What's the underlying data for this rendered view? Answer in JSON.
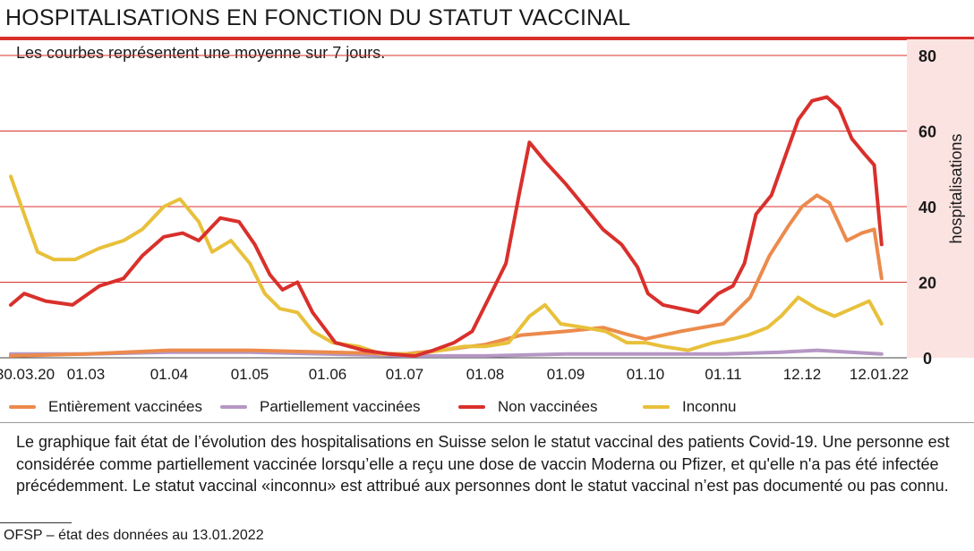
{
  "header": {
    "title": "HOSPITALISATIONS EN FONCTION DU STATUT VACCINAL",
    "subtitle": "Les courbes représentent une moyenne sur 7 jours."
  },
  "legend": {
    "items": [
      {
        "label": "Entièrement vaccinées",
        "color": "#ec8a4c"
      },
      {
        "label": "Partiellement vaccinées",
        "color": "#b597c4"
      },
      {
        "label": "Non vaccinées",
        "color": "#d9302c"
      },
      {
        "label": "Inconnu",
        "color": "#e8c03b"
      }
    ]
  },
  "note": "Le graphique fait état de l’évolution des hospitalisations en Suisse selon le statut vaccinal des patients Covid-19. Une personne est considérée comme partiellement vaccinée lorsqu’elle a reçu une dose de vaccin Moderna ou Pfizer, et qu'elle n'a pas été infectée précédemment. Le statut vaccinal «inconnu» est attribué aux personnes dont le statut vaccinal n’est pas documenté ou pas connu.",
  "source": "OFSP – état des données au 13.01.2022",
  "colors": {
    "accent": "#d9302c",
    "right_band": "#fbe3e1",
    "grid": "#d9302c"
  },
  "chart_data": {
    "type": "line",
    "xlabel": "",
    "ylabel": "hospitalisations",
    "ylim": [
      0,
      80
    ],
    "y_ticks": [
      0,
      20,
      40,
      60,
      80
    ],
    "x_tick_labels": [
      {
        "date": "2020-03-30",
        "label": "30.03.20"
      },
      {
        "date": "2021-03-01",
        "label": "01.03"
      },
      {
        "date": "2021-04-01",
        "label": "01.04"
      },
      {
        "date": "2021-05-01",
        "label": "01.05"
      },
      {
        "date": "2021-06-01",
        "label": "01.06"
      },
      {
        "date": "2021-07-01",
        "label": "01.07"
      },
      {
        "date": "2021-08-01",
        "label": "01.08"
      },
      {
        "date": "2021-09-01",
        "label": "01.09"
      },
      {
        "date": "2021-10-01",
        "label": "01.10"
      },
      {
        "date": "2021-11-01",
        "label": "01.11"
      },
      {
        "date": "2021-12-12",
        "label": "12.12"
      },
      {
        "date": "2022-01-12",
        "label": "12.01.22"
      }
    ],
    "grid": true,
    "legend_position": "bottom",
    "series": [
      {
        "name": "Entièrement vaccinées",
        "color": "#ec8a4c",
        "points": [
          [
            "2021-02-01",
            0.5
          ],
          [
            "2021-03-01",
            1
          ],
          [
            "2021-04-01",
            2
          ],
          [
            "2021-05-01",
            2
          ],
          [
            "2021-06-01",
            1.5
          ],
          [
            "2021-07-01",
            1
          ],
          [
            "2021-07-15",
            2
          ],
          [
            "2021-08-01",
            3.5
          ],
          [
            "2021-08-15",
            6
          ],
          [
            "2021-09-01",
            7
          ],
          [
            "2021-09-15",
            8
          ],
          [
            "2021-09-25",
            6
          ],
          [
            "2021-10-01",
            5
          ],
          [
            "2021-10-15",
            7
          ],
          [
            "2021-11-01",
            9
          ],
          [
            "2021-11-15",
            16
          ],
          [
            "2021-11-25",
            27
          ],
          [
            "2021-12-05",
            35
          ],
          [
            "2021-12-12",
            40
          ],
          [
            "2021-12-18",
            43
          ],
          [
            "2021-12-23",
            41
          ],
          [
            "2021-12-30",
            31
          ],
          [
            "2022-01-05",
            33
          ],
          [
            "2022-01-10",
            34
          ],
          [
            "2022-01-13",
            21
          ]
        ]
      },
      {
        "name": "Partiellement vaccinées",
        "color": "#b597c4",
        "points": [
          [
            "2021-02-01",
            1
          ],
          [
            "2021-03-01",
            1
          ],
          [
            "2021-04-01",
            1.5
          ],
          [
            "2021-05-01",
            1.5
          ],
          [
            "2021-06-01",
            1
          ],
          [
            "2021-07-01",
            0.5
          ],
          [
            "2021-08-01",
            0.5
          ],
          [
            "2021-09-01",
            1
          ],
          [
            "2021-10-01",
            1
          ],
          [
            "2021-11-01",
            1
          ],
          [
            "2021-12-01",
            1.5
          ],
          [
            "2021-12-18",
            2
          ],
          [
            "2022-01-13",
            1
          ]
        ]
      },
      {
        "name": "Non vaccinées",
        "color": "#d9302c",
        "points": [
          [
            "2021-02-01",
            14
          ],
          [
            "2021-02-06",
            17
          ],
          [
            "2021-02-14",
            15
          ],
          [
            "2021-02-24",
            14
          ],
          [
            "2021-03-06",
            19
          ],
          [
            "2021-03-15",
            21
          ],
          [
            "2021-03-22",
            27
          ],
          [
            "2021-03-30",
            32
          ],
          [
            "2021-04-06",
            33
          ],
          [
            "2021-04-12",
            31
          ],
          [
            "2021-04-20",
            37
          ],
          [
            "2021-04-27",
            36
          ],
          [
            "2021-05-03",
            30
          ],
          [
            "2021-05-09",
            22
          ],
          [
            "2021-05-14",
            18
          ],
          [
            "2021-05-20",
            20
          ],
          [
            "2021-05-26",
            12
          ],
          [
            "2021-06-04",
            4
          ],
          [
            "2021-06-15",
            2
          ],
          [
            "2021-06-25",
            1
          ],
          [
            "2021-07-05",
            0.5
          ],
          [
            "2021-07-12",
            2
          ],
          [
            "2021-07-20",
            4
          ],
          [
            "2021-07-27",
            7
          ],
          [
            "2021-08-04",
            18
          ],
          [
            "2021-08-09",
            25
          ],
          [
            "2021-08-14",
            43
          ],
          [
            "2021-08-18",
            57
          ],
          [
            "2021-08-24",
            52
          ],
          [
            "2021-09-01",
            46
          ],
          [
            "2021-09-08",
            40
          ],
          [
            "2021-09-15",
            34
          ],
          [
            "2021-09-22",
            30
          ],
          [
            "2021-09-28",
            24
          ],
          [
            "2021-10-02",
            17
          ],
          [
            "2021-10-08",
            14
          ],
          [
            "2021-10-15",
            13
          ],
          [
            "2021-10-22",
            12
          ],
          [
            "2021-10-30",
            17
          ],
          [
            "2021-11-06",
            19
          ],
          [
            "2021-11-12",
            25
          ],
          [
            "2021-11-18",
            38
          ],
          [
            "2021-11-26",
            43
          ],
          [
            "2021-12-03",
            53
          ],
          [
            "2021-12-10",
            63
          ],
          [
            "2021-12-16",
            68
          ],
          [
            "2021-12-22",
            69
          ],
          [
            "2021-12-27",
            66
          ],
          [
            "2022-01-01",
            58
          ],
          [
            "2022-01-06",
            54
          ],
          [
            "2022-01-10",
            51
          ],
          [
            "2022-01-13",
            30
          ]
        ]
      },
      {
        "name": "Inconnu",
        "color": "#e8c03b",
        "points": [
          [
            "2021-02-01",
            48
          ],
          [
            "2021-02-06",
            38
          ],
          [
            "2021-02-11",
            28
          ],
          [
            "2021-02-17",
            26
          ],
          [
            "2021-02-25",
            26
          ],
          [
            "2021-03-06",
            29
          ],
          [
            "2021-03-15",
            31
          ],
          [
            "2021-03-22",
            34
          ],
          [
            "2021-03-30",
            40
          ],
          [
            "2021-04-05",
            42
          ],
          [
            "2021-04-12",
            36
          ],
          [
            "2021-04-17",
            28
          ],
          [
            "2021-04-24",
            31
          ],
          [
            "2021-05-01",
            25
          ],
          [
            "2021-05-07",
            17
          ],
          [
            "2021-05-13",
            13
          ],
          [
            "2021-05-20",
            12
          ],
          [
            "2021-05-26",
            7
          ],
          [
            "2021-06-03",
            4
          ],
          [
            "2021-06-13",
            3
          ],
          [
            "2021-06-22",
            1
          ],
          [
            "2021-07-05",
            1
          ],
          [
            "2021-07-15",
            2
          ],
          [
            "2021-07-24",
            3
          ],
          [
            "2021-08-01",
            3
          ],
          [
            "2021-08-10",
            4
          ],
          [
            "2021-08-18",
            11
          ],
          [
            "2021-08-24",
            14
          ],
          [
            "2021-08-30",
            9
          ],
          [
            "2021-09-08",
            8
          ],
          [
            "2021-09-16",
            7
          ],
          [
            "2021-09-24",
            4
          ],
          [
            "2021-10-01",
            4
          ],
          [
            "2021-10-08",
            3
          ],
          [
            "2021-10-18",
            2
          ],
          [
            "2021-10-28",
            4
          ],
          [
            "2021-11-06",
            5
          ],
          [
            "2021-11-14",
            6
          ],
          [
            "2021-11-24",
            8
          ],
          [
            "2021-12-01",
            11
          ],
          [
            "2021-12-10",
            16
          ],
          [
            "2021-12-18",
            13
          ],
          [
            "2021-12-25",
            11
          ],
          [
            "2022-01-01",
            13
          ],
          [
            "2022-01-08",
            15
          ],
          [
            "2022-01-13",
            9
          ]
        ]
      }
    ]
  }
}
